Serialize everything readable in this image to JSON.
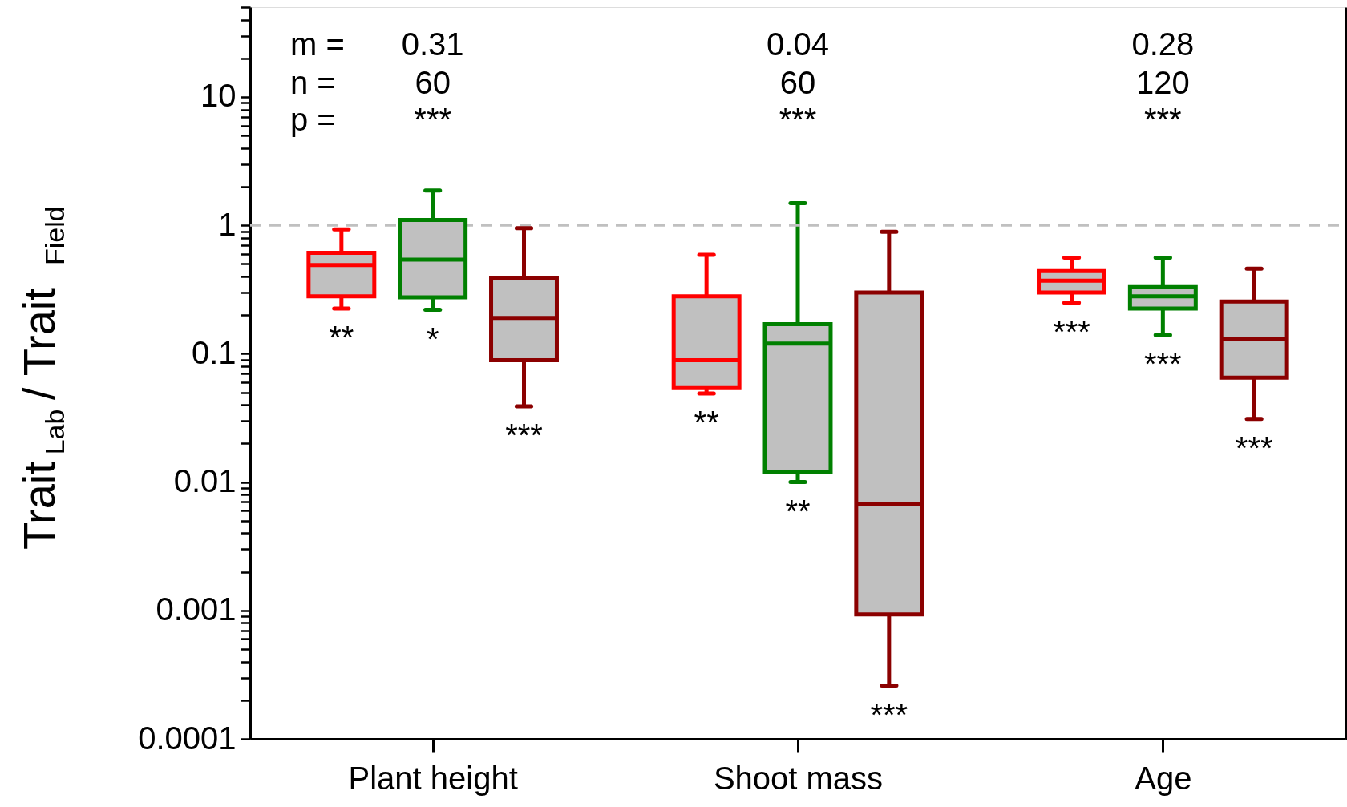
{
  "chart_data": {
    "type": "box",
    "ylabel": "Trait$_{Lab}$ / Trait$_{Field}$",
    "categories": [
      "Plant height",
      "Shoot mass",
      "Age"
    ],
    "log": true,
    "ylim": [
      0.0001,
      50
    ],
    "yticks": [
      {
        "value": 0.0001,
        "label": "0.0001"
      },
      {
        "value": 0.0002,
        "label": null
      },
      {
        "value": 0.0003,
        "label": null
      },
      {
        "value": 0.0004,
        "label": null
      },
      {
        "value": 0.0005,
        "label": null
      },
      {
        "value": 0.0006,
        "label": null
      },
      {
        "value": 0.0007,
        "label": null
      },
      {
        "value": 0.0008,
        "label": null
      },
      {
        "value": 0.0009,
        "label": null
      },
      {
        "value": 0.001,
        "label": "0.001"
      },
      {
        "value": 0.002,
        "label": null
      },
      {
        "value": 0.003,
        "label": null
      },
      {
        "value": 0.004,
        "label": null
      },
      {
        "value": 0.005,
        "label": null
      },
      {
        "value": 0.006,
        "label": null
      },
      {
        "value": 0.007,
        "label": null
      },
      {
        "value": 0.008,
        "label": null
      },
      {
        "value": 0.009,
        "label": null
      },
      {
        "value": 0.01,
        "label": "0.01"
      },
      {
        "value": 0.02,
        "label": null
      },
      {
        "value": 0.03,
        "label": null
      },
      {
        "value": 0.04,
        "label": null
      },
      {
        "value": 0.05,
        "label": null
      },
      {
        "value": 0.06,
        "label": null
      },
      {
        "value": 0.07,
        "label": null
      },
      {
        "value": 0.08,
        "label": null
      },
      {
        "value": 0.09,
        "label": null
      },
      {
        "value": 0.1,
        "label": "0.1"
      },
      {
        "value": 0.2,
        "label": null
      },
      {
        "value": 0.3,
        "label": null
      },
      {
        "value": 0.4,
        "label": null
      },
      {
        "value": 0.5,
        "label": null
      },
      {
        "value": 0.6,
        "label": null
      },
      {
        "value": 0.7,
        "label": null
      },
      {
        "value": 0.8,
        "label": null
      },
      {
        "value": 0.9,
        "label": null
      },
      1,
      {
        "value": 2,
        "label": null
      },
      {
        "value": 3,
        "label": null
      },
      {
        "value": 4,
        "label": null
      },
      {
        "value": 5,
        "label": null
      },
      {
        "value": 6,
        "label": null
      },
      {
        "value": 7,
        "label": null
      },
      {
        "value": 8,
        "label": null
      },
      {
        "value": 9,
        "label": null
      },
      10,
      {
        "value": 20,
        "label": null
      },
      {
        "value": 30,
        "label": null
      },
      {
        "value": 40,
        "label": null
      },
      {
        "value": 50,
        "label": null
      }
    ],
    "ref_lines": [
      {
        "axis": "y",
        "value": 1,
        "color": "#c0c0c0",
        "line_style": "dashed"
      }
    ],
    "series": [
      {
        "color": "#ff0000",
        "value_labels": [
          "**",
          "**",
          "***"
        ],
        "boxes": [
          {
            "low": 0.225,
            "q1": 0.28,
            "median": 0.49,
            "q3": 0.61,
            "high": 0.93
          },
          {
            "low": 0.049,
            "q1": 0.054,
            "median": 0.089,
            "q3": 0.28,
            "high": 0.59
          },
          {
            "low": 0.25,
            "q1": 0.3,
            "median": 0.37,
            "q3": 0.44,
            "high": 0.56
          }
        ]
      },
      {
        "color": "#008000",
        "value_labels": [
          "*",
          "**",
          "***"
        ],
        "boxes": [
          {
            "low": 0.22,
            "q1": 0.275,
            "median": 0.54,
            "q3": 1.1,
            "high": 1.87
          },
          {
            "low": 0.01,
            "q1": 0.012,
            "median": 0.12,
            "q3": 0.17,
            "high": 1.49
          },
          {
            "low": 0.14,
            "q1": 0.225,
            "median": 0.28,
            "q3": 0.33,
            "high": 0.56
          }
        ]
      },
      {
        "color": "#8b0000",
        "value_labels": [
          "***",
          "***",
          "***"
        ],
        "boxes": [
          {
            "low": 0.039,
            "q1": 0.089,
            "median": 0.19,
            "q3": 0.39,
            "high": 0.95
          },
          {
            "low": 0.00026,
            "q1": 0.00093,
            "median": 0.0068,
            "q3": 0.3,
            "high": 0.89
          },
          {
            "low": 0.031,
            "q1": 0.065,
            "median": 0.13,
            "q3": 0.255,
            "high": 0.46
          }
        ]
      }
    ],
    "annotations": [
      "m =",
      "n =",
      "p =",
      "0.31",
      "60",
      "***",
      "0.04",
      "60",
      "***",
      "0.28",
      "120",
      "***"
    ]
  }
}
